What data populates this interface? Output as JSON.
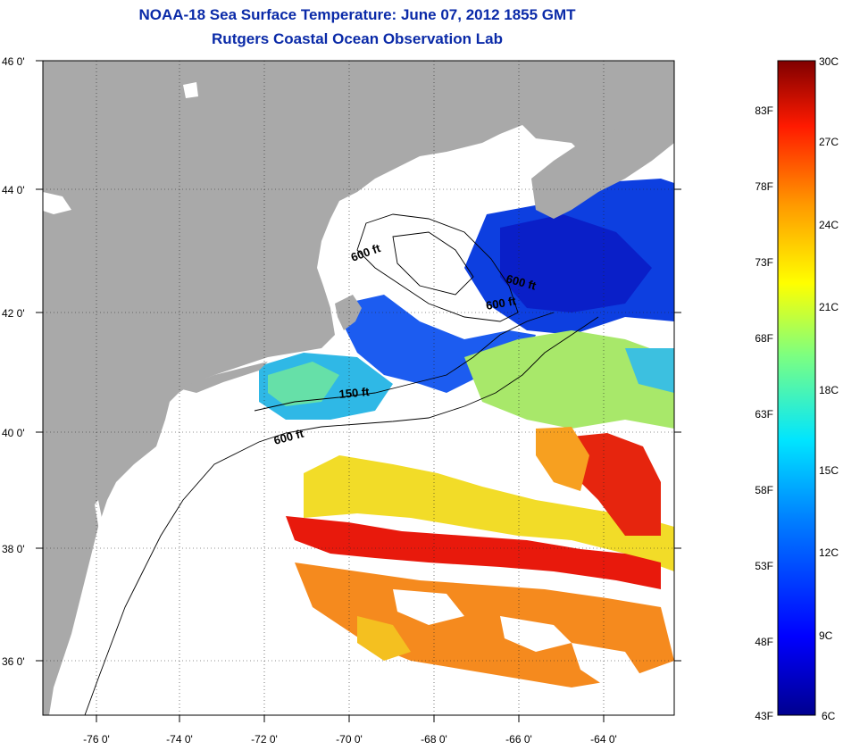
{
  "titles": {
    "line1": "NOAA-18 Sea Surface Temperature:  June 07, 2012 1855 GMT",
    "line2": "Rutgers Coastal Ocean Observation Lab"
  },
  "map": {
    "lat_ticks": [
      "46 0'",
      "44 0'",
      "42 0'",
      "40 0'",
      "38 0'",
      "36 0'"
    ],
    "lon_ticks": [
      "-76 0'",
      "-74 0'",
      "-72 0'",
      "-70 0'",
      "-68 0'",
      "-66 0'",
      "-64 0'"
    ],
    "contour_labels": [
      "600 ft",
      "600 ft",
      "600 ft",
      "150 ft",
      "600 ft"
    ],
    "colors": {
      "land": "#a9a9a9",
      "cold": "#0b2fd6",
      "cool": "#2aa6e6",
      "mild": "#5ee0a0",
      "warm": "#f2e22a",
      "hot": "#f58a1e",
      "very_hot": "#e8190c"
    }
  },
  "colorbar": {
    "celsius": [
      "30C",
      "27C",
      "24C",
      "21C",
      "18C",
      "15C",
      "12C",
      "9C",
      "6C"
    ],
    "fahrenheit": [
      "83F",
      "78F",
      "73F",
      "68F",
      "63F",
      "58F",
      "53F",
      "48F",
      "43F"
    ]
  }
}
